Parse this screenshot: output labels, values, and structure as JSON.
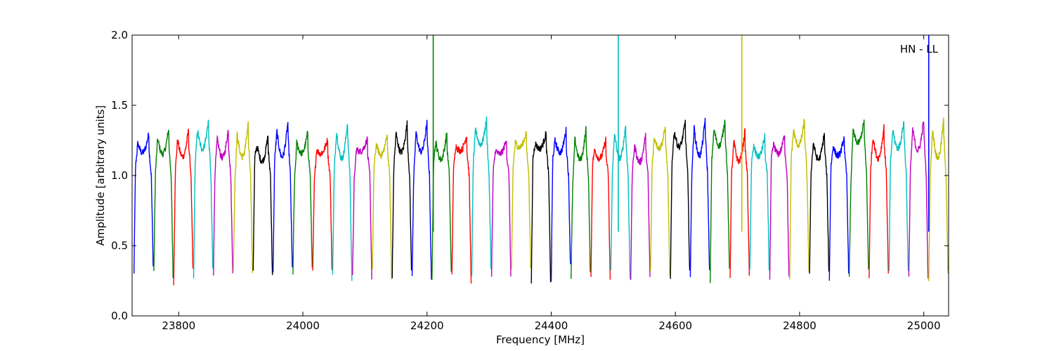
{
  "chart_data": {
    "type": "line",
    "title": "",
    "xlabel": "Frequency [MHz]",
    "ylabel": "Amplitude [arbitrary units]",
    "annotation": "HN - LL",
    "xlim": [
      23725,
      25040
    ],
    "ylim": [
      0.0,
      2.0
    ],
    "x_ticks": [
      23800,
      24000,
      24200,
      24400,
      24600,
      24800,
      25000
    ],
    "y_ticks": [
      0.0,
      0.5,
      1.0,
      1.5,
      2.0
    ],
    "y_tick_labels": [
      "0.0",
      "0.5",
      "1.0",
      "1.5",
      "2.0"
    ],
    "grid": false,
    "colors": [
      "#0000ff",
      "#008000",
      "#ff0000",
      "#00bfbf",
      "#bf00bf",
      "#bfbf00",
      "#000000"
    ],
    "channel_width_mhz": 32,
    "channel_start_mhz": 23728,
    "spikes": [
      {
        "x": 24210,
        "color": "#008000"
      },
      {
        "x": 24508,
        "color": "#00bfbf"
      },
      {
        "x": 24707,
        "color": "#bfbf00"
      },
      {
        "x": 25008,
        "color": "#0000ff"
      }
    ]
  }
}
